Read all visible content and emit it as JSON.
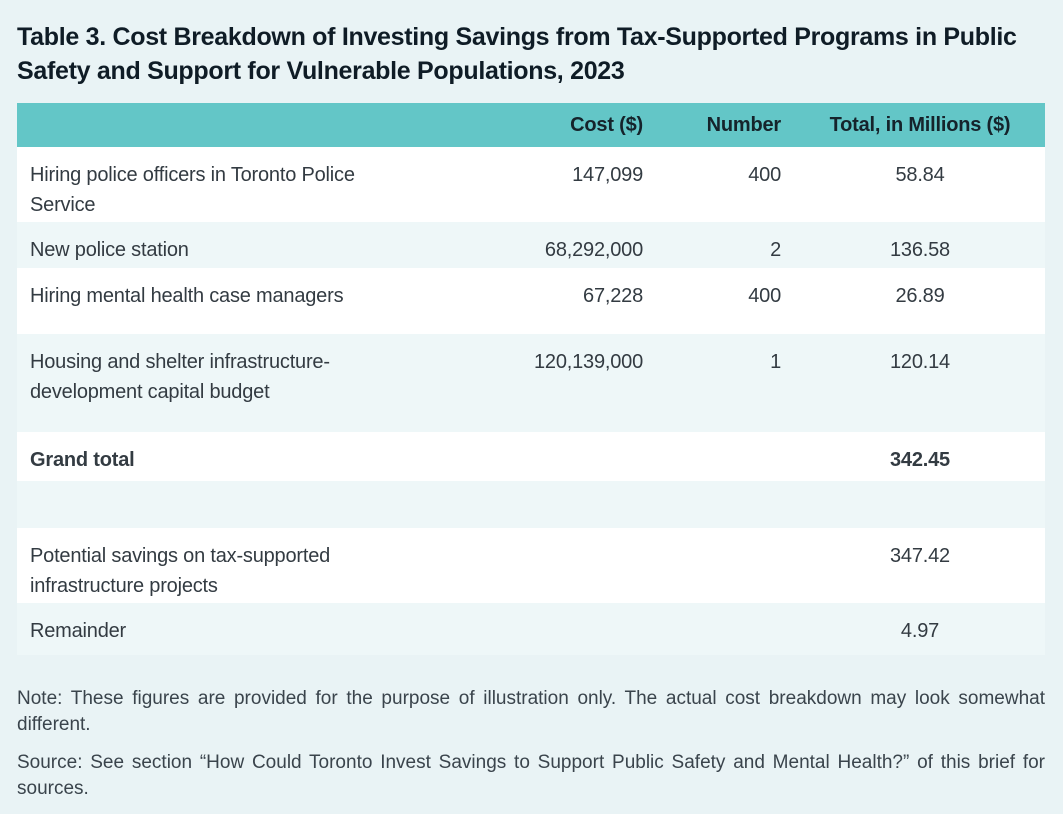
{
  "title": "Table 3. Cost Breakdown of Investing Savings from Tax-Supported Programs in Public Safety and Support for Vulnerable Populations, 2023",
  "table": {
    "columns": {
      "label": "",
      "cost": "Cost ($)",
      "number": "Number",
      "total": "Total, in Millions ($)"
    },
    "rows": [
      {
        "label": "Hiring police officers in Toronto Police Service",
        "cost": "147,099",
        "number": "400",
        "total": "58.84"
      },
      {
        "label": "New police station",
        "cost": "68,292,000",
        "number": "2",
        "total": "136.58"
      },
      {
        "label": "Hiring mental health case managers",
        "cost": "67,228",
        "number": "400",
        "total": "26.89"
      },
      {
        "label": "Housing and shelter infrastructure-development capital budget",
        "cost": "120,139,000",
        "number": "1",
        "total": "120.14"
      },
      {
        "label": "Grand total",
        "cost": "",
        "number": "",
        "total": "342.45"
      },
      {
        "label": "Potential savings on tax-supported infrastructure projects",
        "cost": "",
        "number": "",
        "total": "347.42"
      },
      {
        "label": "Remainder",
        "cost": "",
        "number": "",
        "total": "4.97"
      }
    ]
  },
  "notes": {
    "note": "Note: These figures are provided for the purpose of illustration only. The actual cost breakdown may look somewhat different.",
    "source": "Source: See section “How Could Toronto Invest Savings to Support Public Safety and Mental Health?” of this brief for sources."
  },
  "colors": {
    "page_background": "#e9f3f5",
    "header_teal": "#63c6c7",
    "row_white": "#ffffff",
    "row_tint": "#eef7f8",
    "title_text": "#0f1c26",
    "body_text": "#333b42"
  }
}
